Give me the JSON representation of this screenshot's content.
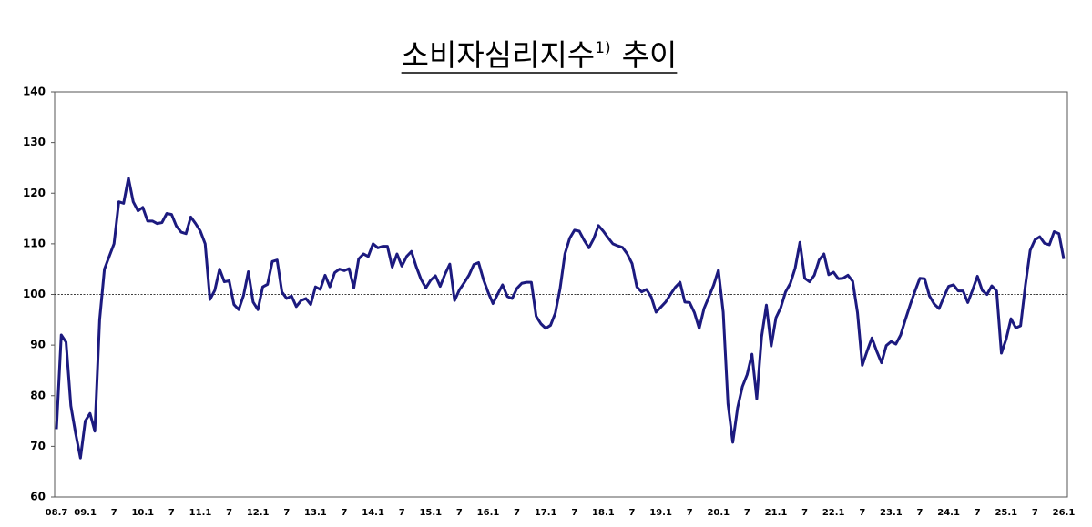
{
  "chart_data": {
    "type": "line",
    "title": {
      "main": "소비자심리지수",
      "sup": "1)",
      "rest": "추이"
    },
    "categories": [
      "08.7",
      null,
      null,
      null,
      null,
      null,
      "09.1",
      null,
      null,
      null,
      null,
      null,
      "7",
      null,
      null,
      null,
      null,
      null,
      "10.1",
      null,
      null,
      null,
      null,
      null,
      "7",
      null,
      null,
      null,
      null,
      null,
      "11.1",
      null,
      null,
      null,
      null,
      null,
      "7",
      null,
      null,
      null,
      null,
      null,
      "12.1",
      null,
      null,
      null,
      null,
      null,
      "7",
      null,
      null,
      null,
      null,
      null,
      "13.1",
      null,
      null,
      null,
      null,
      null,
      "7",
      null,
      null,
      null,
      null,
      null,
      "14.1",
      null,
      null,
      null,
      null,
      null,
      "7",
      null,
      null,
      null,
      null,
      null,
      "15.1",
      null,
      null,
      null,
      null,
      null,
      "7",
      null,
      null,
      null,
      null,
      null,
      "16.1",
      null,
      null,
      null,
      null,
      null,
      "7",
      null,
      null,
      null,
      null,
      null,
      "17.1",
      null,
      null,
      null,
      null,
      null,
      "7",
      null,
      null,
      null,
      null,
      null,
      "18.1",
      null,
      null,
      null,
      null,
      null,
      "7",
      null,
      null,
      null,
      null,
      null,
      "19.1",
      null,
      null,
      null,
      null,
      null,
      "7",
      null,
      null,
      null,
      null,
      null,
      "20.1",
      null,
      null,
      null,
      null,
      null,
      "7",
      null,
      null,
      null,
      null,
      null,
      "21.1",
      null,
      null,
      null,
      null,
      null,
      "7",
      null,
      null,
      null,
      null,
      null,
      "22.1",
      null,
      null,
      null,
      null,
      null,
      "7",
      null,
      null,
      null,
      null,
      null,
      "23.1",
      null,
      null,
      null,
      null,
      null,
      "7",
      null,
      null,
      null,
      null,
      null,
      "24.1",
      null,
      null,
      null,
      null,
      null,
      "7",
      null,
      null,
      null,
      null,
      null,
      "25.1",
      null,
      null,
      null,
      null,
      null,
      "7",
      null,
      null,
      null,
      null,
      null,
      "26.1"
    ],
    "values": [
      73.4,
      92,
      90.6,
      78,
      72.5,
      67.7,
      75,
      76.5,
      73,
      95,
      105,
      107.5,
      110,
      118.3,
      118,
      123,
      118.3,
      116.5,
      117.2,
      114.5,
      114.5,
      114,
      114.2,
      116,
      115.8,
      113.5,
      112.3,
      112,
      115.3,
      114,
      112.5,
      110,
      99,
      100.8,
      105,
      102.5,
      102.7,
      98,
      97,
      99.8,
      104.5,
      98.5,
      97,
      101.5,
      102,
      106.5,
      106.8,
      100.5,
      99.2,
      99.7,
      97.6,
      98.8,
      99.2,
      98,
      101.5,
      101,
      103.8,
      101.5,
      104.3,
      105,
      104.7,
      105.1,
      101.3,
      107,
      108,
      107.5,
      110,
      109.2,
      109.5,
      109.5,
      105.4,
      108,
      105.6,
      107.5,
      108.5,
      105.5,
      103,
      101.3,
      102.8,
      103.7,
      101.6,
      104,
      106,
      98.8,
      100.9,
      102.3,
      103.8,
      105.9,
      106.3,
      103,
      100.4,
      98.2,
      100.1,
      101.9,
      99.6,
      99.2,
      101.2,
      102.2,
      102.4,
      102.4,
      95.7,
      94.2,
      93.3,
      93.9,
      96.3,
      101.2,
      108,
      111.1,
      112.7,
      112.5,
      110.7,
      109.2,
      111,
      113.6,
      112.5,
      111.2,
      110,
      109.6,
      109.3,
      108,
      106.1,
      101.5,
      100.5,
      101,
      99.5,
      96.5,
      97.5,
      98.5,
      100,
      101.4,
      102.4,
      98.5,
      98.4,
      96.4,
      93.3,
      97.2,
      99.5,
      101.8,
      104.8,
      96.5,
      78.4,
      70.8,
      77.6,
      81.8,
      84.2,
      88.2,
      79.4,
      91.6,
      97.9,
      89.8,
      95.4,
      97.4,
      100.5,
      102.2,
      105.2,
      110.3,
      103.2,
      102.5,
      103.8,
      106.8,
      108,
      103.9,
      104.4,
      103.1,
      103.2,
      103.8,
      102.6,
      96.4,
      86,
      88.8,
      91.4,
      88.8,
      86.5,
      89.9,
      90.7,
      90.2,
      92,
      95.1,
      98,
      100.7,
      103.2,
      103.1,
      99.7,
      98.1,
      97.2,
      99.5,
      101.6,
      101.9,
      100.7,
      100.7,
      98.4,
      100.9,
      103.6,
      100.8,
      100,
      101.7,
      100.7,
      88.4,
      91.2,
      95.2,
      93.4,
      93.8,
      101.8,
      108.7,
      110.8,
      111.4,
      110.1,
      109.8,
      112.4,
      112,
      107
    ],
    "color": "#1c1a7f",
    "ylim": [
      60,
      140
    ],
    "yticks": [
      60,
      70,
      80,
      90,
      100,
      110,
      120,
      130,
      140
    ],
    "reference_line": 100
  }
}
